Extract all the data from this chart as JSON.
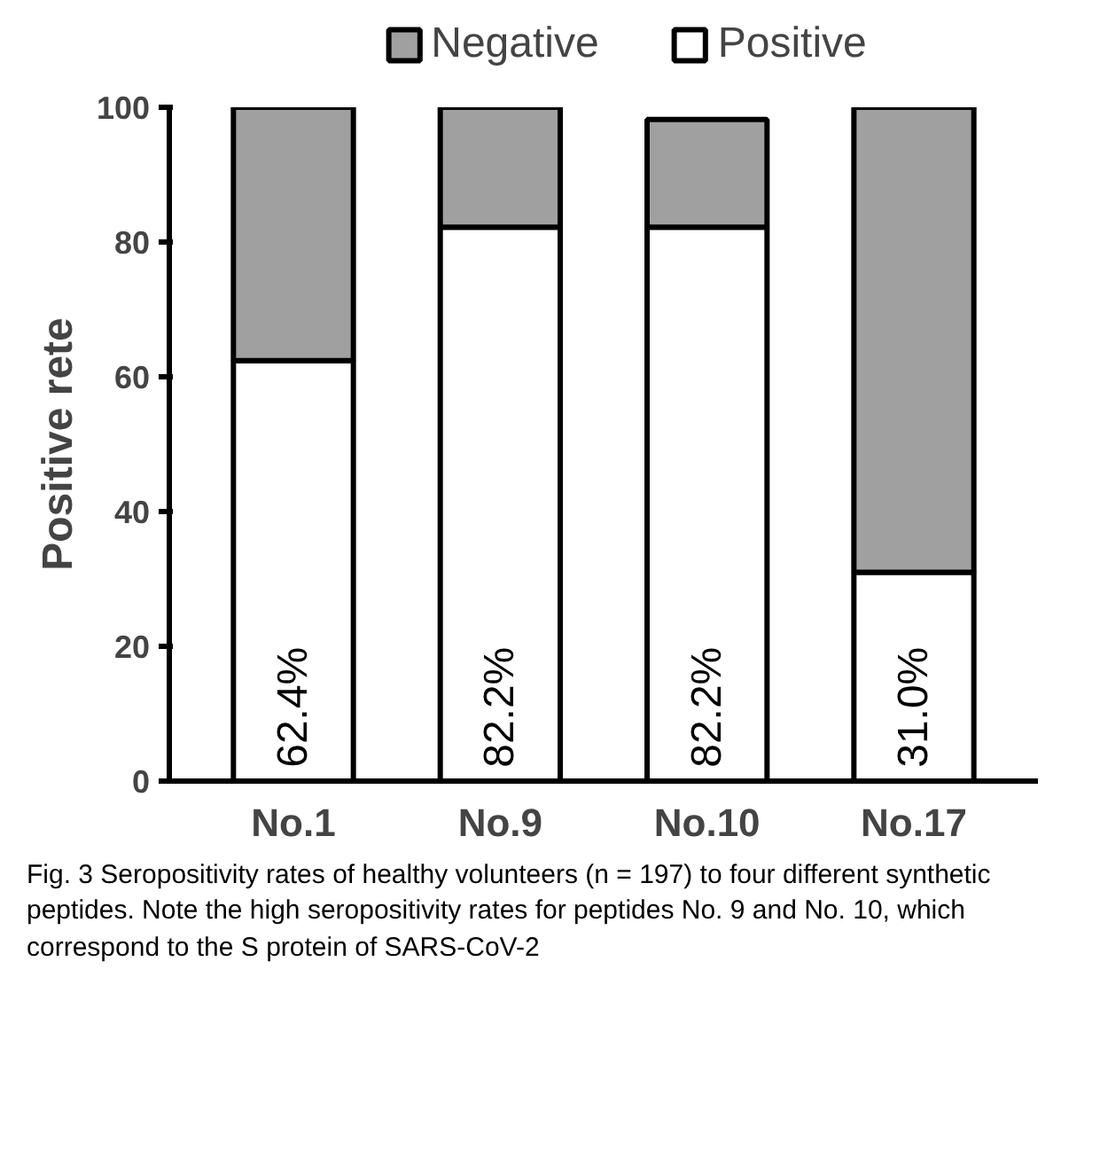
{
  "chart_data": {
    "type": "bar",
    "ylabel": "Positive rete",
    "categories": [
      "No.1",
      "No.9",
      "No.10",
      "No.17"
    ],
    "stacked": true,
    "series": [
      {
        "name": "Positive",
        "color": "#ffffff",
        "values": [
          62.4,
          82.2,
          82.2,
          31.0
        ],
        "value_labels": [
          "62.4%",
          "82.2%",
          "82.2%",
          "31.0%"
        ]
      },
      {
        "name": "Negative",
        "color": "#a0a0a0",
        "values": [
          38,
          18,
          16,
          69
        ]
      }
    ],
    "ylim": [
      0,
      100
    ],
    "yticks": [
      0,
      20,
      40,
      60,
      80,
      100
    ],
    "grid": false,
    "legend": "top",
    "annotations": [
      "Fig. 3 Seropositivity rates of healthy volunteers (n = 197) to four different synthetic peptides. Note the high seropositivity rates for peptides No. 9 and No. 10, which correspond to the S protein of SARS-CoV-2"
    ]
  }
}
